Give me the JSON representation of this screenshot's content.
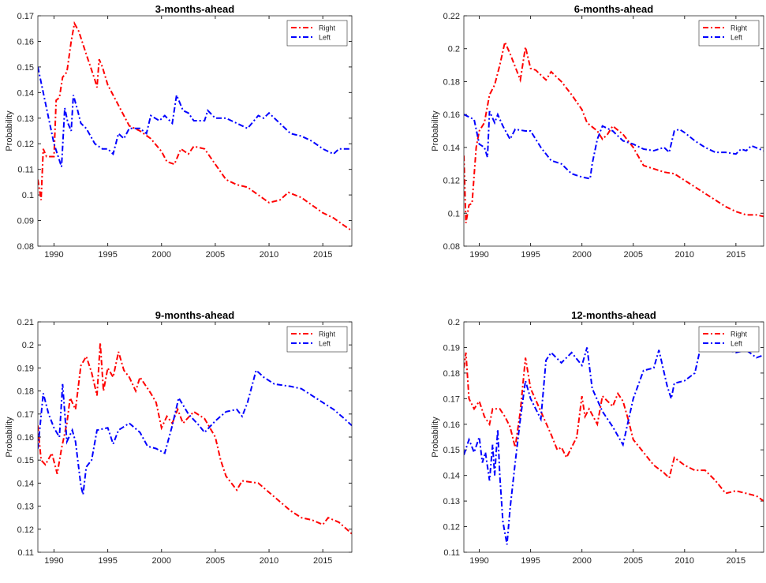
{
  "chart_data": [
    {
      "type": "line",
      "title": "3-months-ahead",
      "ylabel": "Probability",
      "xlim": [
        1988.5,
        2017.7
      ],
      "xticks": [
        1990,
        1995,
        2000,
        2005,
        2010,
        2015
      ],
      "ylim": [
        0.08,
        0.17
      ],
      "yticks": [
        0.08,
        0.09,
        0.1,
        0.11,
        0.12,
        0.13,
        0.14,
        0.15,
        0.16,
        0.17
      ],
      "legend": "northeast",
      "series": [
        {
          "name": "Right",
          "color": "#ff0000",
          "x": [
            1988.5,
            1988.8,
            1989,
            1989.3,
            1990,
            1990.2,
            1990.5,
            1990.8,
            1991.2,
            1991.6,
            1991.9,
            1992.3,
            1993,
            1993.8,
            1994,
            1994.2,
            1994.5,
            1995,
            1996,
            1997,
            1998,
            1999,
            2000,
            2000.5,
            2001.2,
            2001.8,
            2002.5,
            2003,
            2004,
            2005,
            2006,
            2007,
            2008,
            2009,
            2010,
            2011,
            2011.8,
            2013,
            2014,
            2015,
            2016,
            2017,
            2017.7
          ],
          "values": [
            0.106,
            0.098,
            0.118,
            0.115,
            0.115,
            0.137,
            0.138,
            0.146,
            0.148,
            0.16,
            0.167,
            0.164,
            0.155,
            0.145,
            0.142,
            0.153,
            0.15,
            0.143,
            0.135,
            0.127,
            0.125,
            0.122,
            0.117,
            0.113,
            0.112,
            0.118,
            0.116,
            0.119,
            0.118,
            0.112,
            0.106,
            0.104,
            0.103,
            0.1,
            0.097,
            0.098,
            0.101,
            0.099,
            0.096,
            0.093,
            0.091,
            0.088,
            0.086
          ]
        },
        {
          "name": "Left",
          "color": "#0000ff",
          "x": [
            1988.5,
            1989,
            1989.5,
            1990,
            1990.7,
            1991,
            1991.3,
            1991.6,
            1991.8,
            1992.2,
            1992.5,
            1993,
            1993.8,
            1994.5,
            1995,
            1995.5,
            1996,
            1996.5,
            1997,
            1998,
            1998.6,
            1999,
            1999.8,
            2000.3,
            2001,
            2001.4,
            2002,
            2002.5,
            2003,
            2004,
            2004.3,
            2005,
            2006,
            2007,
            2008,
            2009,
            2009.5,
            2010,
            2011,
            2012,
            2013,
            2014,
            2015,
            2016,
            2016.5,
            2017.7
          ],
          "values": [
            0.15,
            0.14,
            0.13,
            0.12,
            0.111,
            0.134,
            0.128,
            0.125,
            0.139,
            0.133,
            0.128,
            0.126,
            0.12,
            0.118,
            0.118,
            0.116,
            0.124,
            0.122,
            0.126,
            0.126,
            0.124,
            0.131,
            0.129,
            0.131,
            0.128,
            0.139,
            0.133,
            0.132,
            0.129,
            0.129,
            0.133,
            0.13,
            0.13,
            0.128,
            0.126,
            0.131,
            0.13,
            0.132,
            0.128,
            0.124,
            0.123,
            0.121,
            0.118,
            0.116,
            0.118,
            0.118
          ]
        }
      ]
    },
    {
      "type": "line",
      "title": "6-months-ahead",
      "ylabel": "Probability",
      "xlim": [
        1988.5,
        2017.7
      ],
      "xticks": [
        1990,
        1995,
        2000,
        2005,
        2010,
        2015
      ],
      "ylim": [
        0.08,
        0.22
      ],
      "yticks": [
        0.08,
        0.1,
        0.12,
        0.14,
        0.16,
        0.18,
        0.2,
        0.22
      ],
      "legend": "northeast",
      "series": [
        {
          "name": "Right",
          "color": "#ff0000",
          "x": [
            1988.5,
            1988.7,
            1989,
            1989.3,
            1989.7,
            1990,
            1990.5,
            1991,
            1991.5,
            1992,
            1992.5,
            1993,
            1994,
            1994.5,
            1995,
            1995.5,
            1996,
            1996.5,
            1997,
            1998,
            1999,
            2000,
            2000.5,
            2001.5,
            2002,
            2002.5,
            2003,
            2004,
            2005,
            2006,
            2007,
            2008,
            2009,
            2010,
            2011,
            2012,
            2013,
            2014,
            2015,
            2016,
            2017,
            2017.7
          ],
          "values": [
            0.135,
            0.094,
            0.105,
            0.106,
            0.14,
            0.15,
            0.155,
            0.172,
            0.178,
            0.19,
            0.204,
            0.197,
            0.181,
            0.201,
            0.188,
            0.187,
            0.184,
            0.181,
            0.186,
            0.18,
            0.172,
            0.163,
            0.155,
            0.15,
            0.145,
            0.148,
            0.153,
            0.148,
            0.14,
            0.129,
            0.127,
            0.125,
            0.124,
            0.12,
            0.116,
            0.112,
            0.108,
            0.104,
            0.101,
            0.099,
            0.099,
            0.098
          ]
        },
        {
          "name": "Left",
          "color": "#0000ff",
          "x": [
            1988.5,
            1989.5,
            1990,
            1990.5,
            1990.8,
            1991,
            1991.5,
            1991.8,
            1992.3,
            1993,
            1993.5,
            1994.5,
            1995,
            1996,
            1997,
            1998,
            1999,
            2000,
            2000.8,
            2001,
            2001.5,
            2002,
            2003,
            2004,
            2005,
            2006,
            2007,
            2008,
            2008.5,
            2009,
            2009.5,
            2010,
            2011,
            2012,
            2013,
            2014,
            2015,
            2015.5,
            2016,
            2016.5,
            2017.7
          ],
          "values": [
            0.16,
            0.157,
            0.142,
            0.14,
            0.134,
            0.162,
            0.155,
            0.16,
            0.153,
            0.145,
            0.151,
            0.15,
            0.15,
            0.14,
            0.132,
            0.13,
            0.124,
            0.122,
            0.121,
            0.13,
            0.145,
            0.153,
            0.15,
            0.144,
            0.142,
            0.139,
            0.138,
            0.14,
            0.137,
            0.15,
            0.151,
            0.149,
            0.144,
            0.14,
            0.137,
            0.137,
            0.136,
            0.139,
            0.138,
            0.141,
            0.138
          ]
        }
      ]
    },
    {
      "type": "line",
      "title": "9-months-ahead",
      "ylabel": "Probability",
      "xlim": [
        1988.5,
        2017.7
      ],
      "xticks": [
        1990,
        1995,
        2000,
        2005,
        2010,
        2015
      ],
      "ylim": [
        0.11,
        0.21
      ],
      "yticks": [
        0.11,
        0.12,
        0.13,
        0.14,
        0.15,
        0.16,
        0.17,
        0.18,
        0.19,
        0.2,
        0.21
      ],
      "legend": "northeast",
      "series": [
        {
          "name": "Right",
          "color": "#ff0000",
          "x": [
            1988.5,
            1988.8,
            1989.2,
            1989.8,
            1990.3,
            1990.7,
            1991.2,
            1991.5,
            1992,
            1992.5,
            1993,
            1993.5,
            1994,
            1994.3,
            1994.6,
            1995,
            1995.5,
            1996,
            1996.5,
            1997,
            1997.6,
            1998,
            1999,
            1999.5,
            2000,
            2000.5,
            2001,
            2001.5,
            2002,
            2003,
            2004,
            2005,
            2005.5,
            2006,
            2007,
            2007.5,
            2009,
            2010,
            2011,
            2012,
            2013,
            2014,
            2015,
            2015.5,
            2016.5,
            2017.7
          ],
          "values": [
            0.165,
            0.15,
            0.148,
            0.153,
            0.144,
            0.155,
            0.166,
            0.177,
            0.172,
            0.191,
            0.195,
            0.188,
            0.178,
            0.201,
            0.18,
            0.19,
            0.186,
            0.197,
            0.189,
            0.186,
            0.18,
            0.186,
            0.179,
            0.175,
            0.164,
            0.169,
            0.166,
            0.172,
            0.166,
            0.171,
            0.168,
            0.16,
            0.15,
            0.143,
            0.137,
            0.141,
            0.14,
            0.136,
            0.132,
            0.128,
            0.125,
            0.124,
            0.122,
            0.125,
            0.123,
            0.118
          ]
        },
        {
          "name": "Left",
          "color": "#0000ff",
          "x": [
            1988.5,
            1989,
            1989.5,
            1990,
            1990.5,
            1990.8,
            1991.2,
            1991.7,
            1992,
            1992.5,
            1992.7,
            1993,
            1993.5,
            1994,
            1995,
            1995.5,
            1996,
            1997,
            1998,
            1998.7,
            1999.5,
            2000.3,
            2001,
            2001.6,
            2002.5,
            2003.5,
            2004,
            2005,
            2006,
            2007,
            2007.5,
            2008,
            2008.8,
            2009.5,
            2010.5,
            2012,
            2013,
            2014,
            2015,
            2016,
            2017,
            2017.7
          ],
          "values": [
            0.155,
            0.179,
            0.17,
            0.164,
            0.16,
            0.183,
            0.158,
            0.163,
            0.158,
            0.139,
            0.135,
            0.147,
            0.15,
            0.163,
            0.164,
            0.157,
            0.163,
            0.166,
            0.162,
            0.156,
            0.155,
            0.153,
            0.165,
            0.177,
            0.17,
            0.165,
            0.162,
            0.167,
            0.171,
            0.172,
            0.169,
            0.175,
            0.189,
            0.186,
            0.183,
            0.182,
            0.181,
            0.178,
            0.175,
            0.172,
            0.168,
            0.165
          ]
        }
      ]
    },
    {
      "type": "line",
      "title": "12-months-ahead",
      "ylabel": "Probability",
      "xlim": [
        1988.5,
        2017.7
      ],
      "xticks": [
        1990,
        1995,
        2000,
        2005,
        2010,
        2015
      ],
      "ylim": [
        0.11,
        0.2
      ],
      "yticks": [
        0.11,
        0.12,
        0.13,
        0.14,
        0.15,
        0.16,
        0.17,
        0.18,
        0.19,
        0.2
      ],
      "legend": "northeast",
      "series": [
        {
          "name": "Right",
          "color": "#ff0000",
          "x": [
            1988.5,
            1988.7,
            1989,
            1989.5,
            1990,
            1990.5,
            1991,
            1991.3,
            1992,
            1992.5,
            1993,
            1993.5,
            1994,
            1994.5,
            1995,
            1996,
            1997,
            1997.6,
            1998,
            1998.5,
            1999,
            1999.5,
            2000,
            2000.3,
            2000.7,
            2001.5,
            2002,
            2003,
            2003.5,
            2004,
            2004.5,
            2005,
            2006,
            2007,
            2008,
            2008.5,
            2009,
            2010,
            2011,
            2012,
            2013,
            2014,
            2015,
            2016,
            2017,
            2017.7
          ],
          "values": [
            0.182,
            0.188,
            0.17,
            0.166,
            0.169,
            0.163,
            0.16,
            0.166,
            0.166,
            0.163,
            0.159,
            0.151,
            0.165,
            0.186,
            0.174,
            0.165,
            0.156,
            0.15,
            0.151,
            0.147,
            0.151,
            0.155,
            0.171,
            0.163,
            0.166,
            0.16,
            0.171,
            0.167,
            0.172,
            0.169,
            0.162,
            0.154,
            0.149,
            0.144,
            0.141,
            0.139,
            0.147,
            0.144,
            0.142,
            0.142,
            0.138,
            0.133,
            0.134,
            0.133,
            0.132,
            0.13
          ]
        },
        {
          "name": "Left",
          "color": "#0000ff",
          "x": [
            1988.5,
            1989,
            1989.5,
            1990,
            1990.3,
            1990.6,
            1991,
            1991.3,
            1991.5,
            1991.8,
            1992,
            1992.3,
            1992.7,
            1993,
            1993.5,
            1994,
            1994.5,
            1995,
            1996,
            1996.5,
            1997,
            1998,
            1999,
            2000,
            2000.5,
            2001,
            2002,
            2003,
            2004,
            2005,
            2006,
            2007,
            2007.5,
            2008.3,
            2008.7,
            2009,
            2010,
            2011,
            2011.5,
            2012.5,
            2013.5,
            2015,
            2016,
            2017,
            2017.7
          ],
          "values": [
            0.148,
            0.154,
            0.149,
            0.155,
            0.145,
            0.149,
            0.138,
            0.152,
            0.14,
            0.158,
            0.14,
            0.122,
            0.113,
            0.127,
            0.145,
            0.162,
            0.177,
            0.17,
            0.162,
            0.185,
            0.188,
            0.184,
            0.188,
            0.183,
            0.19,
            0.174,
            0.165,
            0.159,
            0.152,
            0.17,
            0.181,
            0.182,
            0.189,
            0.175,
            0.17,
            0.176,
            0.177,
            0.18,
            0.189,
            0.191,
            0.19,
            0.188,
            0.189,
            0.186,
            0.187
          ]
        }
      ]
    }
  ]
}
